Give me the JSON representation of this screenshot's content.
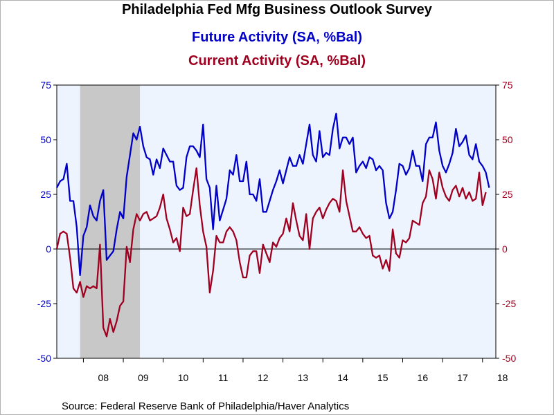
{
  "titles": {
    "main": "Philadelphia Fed Mfg Business Outlook Survey",
    "future": "Future Activity (SA, %Bal)",
    "current": "Current Activity (SA, %Bal)"
  },
  "source": "Source:  Federal Reserve Bank of Philadelphia/Haver Analytics",
  "colors": {
    "future": "#0000c8",
    "current": "#a00020",
    "plot_bg": "#eef4fe",
    "recession": "#c8c8c8",
    "left_axis": "#0000c8",
    "right_axis": "#a00020"
  },
  "chart_data": {
    "type": "line",
    "title": "Philadelphia Fed Mfg Business Outlook Survey",
    "x_start": "2007-05",
    "x_end": "2018-05",
    "x_ticks": [
      "08",
      "09",
      "10",
      "11",
      "12",
      "13",
      "14",
      "15",
      "16",
      "17",
      "18"
    ],
    "ylim": [
      -50,
      75
    ],
    "y_ticks": [
      75,
      50,
      25,
      0,
      -25,
      -50
    ],
    "recession_shading": {
      "start": "2007-12",
      "end": "2009-06"
    },
    "zero_line": true,
    "grid": false,
    "series": [
      {
        "name": "Future Activity (SA, %Bal)",
        "color": "#0000c8",
        "axis": "left",
        "values": [
          28,
          31,
          32,
          39,
          22,
          22,
          10,
          -12,
          6,
          10,
          20,
          15,
          13,
          22,
          27,
          -5,
          -3,
          -1,
          9,
          17,
          14,
          33,
          43,
          53,
          50,
          56,
          47,
          42,
          41,
          34,
          41,
          37,
          46,
          43,
          40,
          40,
          29,
          27,
          28,
          42,
          47,
          47,
          45,
          42,
          57,
          32,
          28,
          9,
          29,
          13,
          18,
          23,
          36,
          34,
          43,
          31,
          31,
          40,
          25,
          25,
          22,
          32,
          17,
          17,
          22,
          27,
          31,
          36,
          30,
          36,
          42,
          38,
          38,
          43,
          39,
          48,
          57,
          43,
          40,
          54,
          42,
          44,
          43,
          55,
          62,
          46,
          51,
          51,
          48,
          51,
          35,
          38,
          40,
          37,
          42,
          41,
          36,
          38,
          36,
          21,
          14,
          17,
          27,
          39,
          38,
          34,
          37,
          45,
          38,
          38,
          31,
          48,
          51,
          51,
          58,
          45,
          38,
          35,
          39,
          44,
          55,
          47,
          49,
          52,
          43,
          41,
          48,
          40,
          38,
          35,
          28
        ]
      },
      {
        "name": "Current Activity (SA, %Bal)",
        "color": "#a00020",
        "axis": "right",
        "values": [
          0,
          7,
          8,
          7,
          -4,
          -18,
          -20,
          -15,
          -22,
          -17,
          -18,
          -17,
          -18,
          2,
          -36,
          -40,
          -32,
          -38,
          -33,
          -26,
          -24,
          1,
          -6,
          9,
          16,
          13,
          16,
          17,
          13,
          14,
          15,
          19,
          25,
          14,
          9,
          3,
          5,
          -1,
          19,
          15,
          16,
          27,
          37,
          20,
          8,
          1,
          -20,
          -10,
          6,
          3,
          3,
          8,
          10,
          8,
          4,
          -6,
          -13,
          -13,
          -3,
          -1,
          -1,
          -11,
          2,
          -2,
          -6,
          3,
          1,
          5,
          7,
          14,
          8,
          21,
          13,
          6,
          4,
          16,
          0,
          14,
          17,
          19,
          14,
          18,
          21,
          23,
          22,
          17,
          36,
          22,
          15,
          8,
          8,
          10,
          7,
          5,
          6,
          -3,
          -4,
          -3,
          -9,
          -5,
          -10,
          9,
          -2,
          -4,
          4,
          3,
          5,
          13,
          12,
          11,
          21,
          24,
          36,
          32,
          23,
          35,
          28,
          24,
          22,
          27,
          29,
          24,
          28,
          23,
          26,
          22,
          23,
          35,
          20,
          26
        ]
      }
    ]
  }
}
